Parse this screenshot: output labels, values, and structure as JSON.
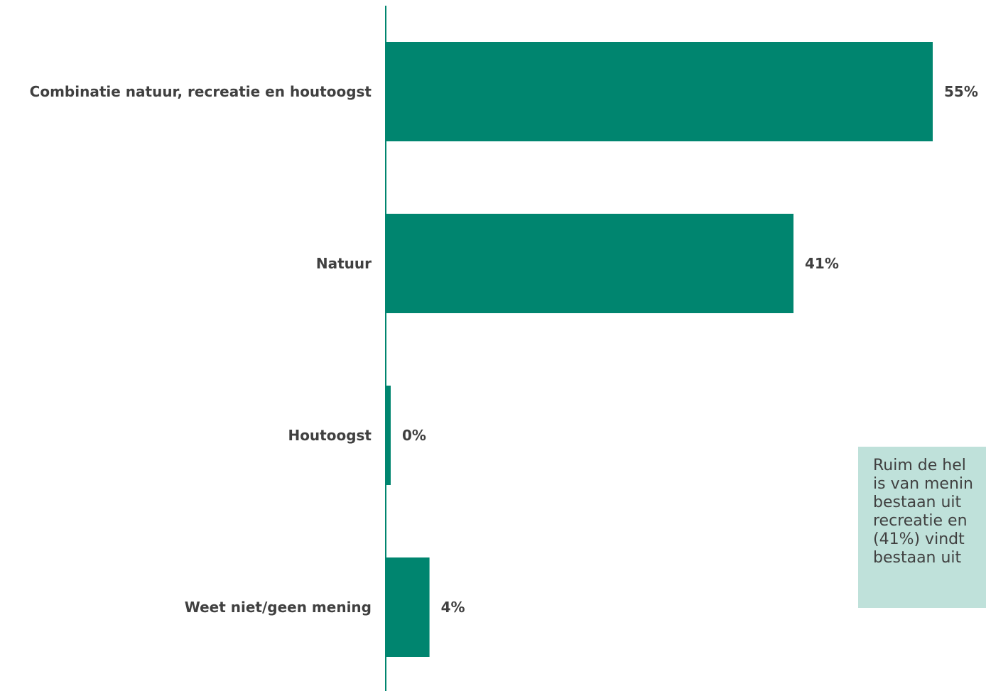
{
  "chart_data": {
    "type": "bar",
    "orientation": "horizontal",
    "categories": [
      "Combinatie natuur, recreatie en houtoogst",
      "Natuur",
      "Houtoogst",
      "Weet niet/geen mening"
    ],
    "values": [
      55,
      41,
      0.5,
      4.4
    ],
    "value_labels": [
      "55%",
      "41%",
      "0%",
      "4%"
    ],
    "unit": "%",
    "xlim": [
      0,
      60
    ],
    "grid": false,
    "bar_color": "#00856f",
    "axis_color": "#00856f",
    "title": "",
    "xlabel": "",
    "ylabel": ""
  },
  "note": {
    "lines": [
      "Ruim de hel",
      "is van menin",
      "bestaan uit",
      "recreatie en",
      "(41%) vindt",
      "bestaan uit"
    ],
    "background": "#bfe1da"
  }
}
